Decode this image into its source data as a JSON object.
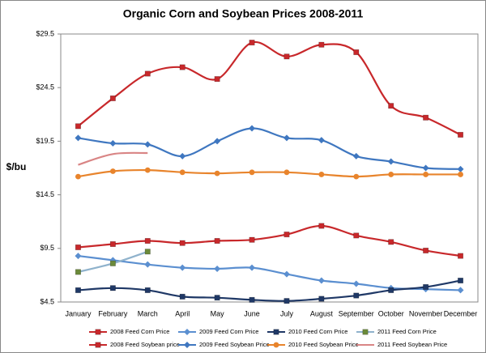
{
  "chart_data": {
    "type": "line",
    "title": "Organic Corn and Soybean Prices 2008-2011",
    "y_label": "$/bu",
    "categories": [
      "January",
      "February",
      "March",
      "April",
      "May",
      "June",
      "July",
      "August",
      "September",
      "October",
      "November",
      "December"
    ],
    "ylim": [
      4.5,
      29.5
    ],
    "yticks": [
      {
        "value": 4.5,
        "label": "$4.5"
      },
      {
        "value": 9.5,
        "label": "$9.5"
      },
      {
        "value": 14.5,
        "label": "$14.5"
      },
      {
        "value": 19.5,
        "label": "$19.5"
      },
      {
        "value": 24.5,
        "label": "$24.5"
      },
      {
        "value": 29.5,
        "label": "$29.5"
      }
    ],
    "grid": false,
    "series": [
      {
        "name": "2008 Feed Corn Price",
        "color": "#c8282b",
        "marker": "square",
        "values": [
          9.6,
          9.9,
          10.2,
          10.0,
          10.2,
          10.3,
          10.8,
          11.6,
          10.7,
          10.1,
          9.3,
          8.8
        ]
      },
      {
        "name": "2009 Feed Corn Price",
        "color": "#5b8fd0",
        "marker": "diamond",
        "values": [
          8.8,
          8.4,
          8.0,
          7.7,
          7.6,
          7.7,
          7.1,
          6.5,
          6.2,
          5.8,
          5.7,
          5.6
        ]
      },
      {
        "name": "2010 Feed Corn Price",
        "color": "#1f3866",
        "marker": "square",
        "values": [
          5.6,
          5.8,
          5.6,
          5.0,
          4.9,
          4.7,
          4.6,
          4.8,
          5.1,
          5.6,
          5.9,
          6.5
        ]
      },
      {
        "name": "2011 Feed Corn Price",
        "color": "#8fb2cc",
        "marker": "square",
        "marker_color": "#6b8a3a",
        "values": [
          7.3,
          8.1,
          9.2,
          null,
          null,
          null,
          null,
          null,
          null,
          null,
          null,
          null
        ]
      },
      {
        "name": "2008 Feed Soybean price",
        "color": "#c8282b",
        "marker": "square",
        "values": [
          20.9,
          23.5,
          25.8,
          26.4,
          25.3,
          28.7,
          27.4,
          28.5,
          27.8,
          22.8,
          21.7,
          20.1
        ]
      },
      {
        "name": "2009 Feed Soybean Price",
        "color": "#3f77c0",
        "marker": "diamond",
        "values": [
          19.8,
          19.3,
          19.2,
          18.1,
          19.5,
          20.7,
          19.8,
          19.6,
          18.1,
          17.6,
          17.0,
          16.9
        ]
      },
      {
        "name": "2010 Feed Soybean Price",
        "color": "#e8842c",
        "marker": "circle",
        "values": [
          16.2,
          16.7,
          16.8,
          16.6,
          16.5,
          16.6,
          16.6,
          16.4,
          16.2,
          16.4,
          16.4,
          16.4
        ]
      },
      {
        "name": "2011 Feed Soybean Price",
        "color": "#d98585",
        "marker": "none",
        "values": [
          17.3,
          18.3,
          18.4,
          null,
          null,
          null,
          null,
          null,
          null,
          null,
          null,
          null
        ]
      }
    ]
  }
}
